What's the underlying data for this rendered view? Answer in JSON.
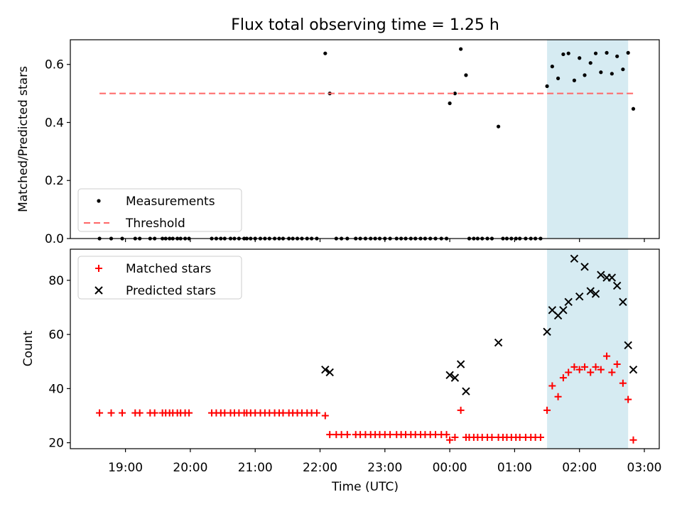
{
  "chart_data": {
    "type": "scatter",
    "title": "Flux total observing time = 1.25 h",
    "xlabel": "Time (UTC)",
    "x_ticks": [
      "19:00",
      "20:00",
      "21:00",
      "22:00",
      "23:00",
      "00:00",
      "01:00",
      "02:00",
      "03:00"
    ],
    "x_tick_hours": [
      19,
      20,
      21,
      22,
      23,
      24,
      25,
      26,
      27
    ],
    "xlim": [
      18.15,
      27.23
    ],
    "highlight_span": {
      "x0": 25.5,
      "x1": 26.75,
      "color": "#add8e6"
    },
    "panels": [
      {
        "ylabel": "Matched/Predicted stars",
        "ylim": [
          0,
          0.685
        ],
        "yticks": [
          "0.0",
          "0.2",
          "0.4",
          "0.6"
        ],
        "ytick_values": [
          0,
          0.2,
          0.4,
          0.6
        ],
        "legend": {
          "position": "lower-left",
          "entries": [
            "Measurements",
            "Threshold"
          ]
        },
        "series": [
          {
            "name": "Measurements",
            "marker": "dot",
            "color": "#000000",
            "points": [
              [
                18.6,
                0
              ],
              [
                18.78,
                0
              ],
              [
                18.95,
                0
              ],
              [
                19.15,
                0
              ],
              [
                19.22,
                0
              ],
              [
                19.38,
                0
              ],
              [
                19.45,
                0
              ],
              [
                19.57,
                0
              ],
              [
                19.62,
                0
              ],
              [
                19.68,
                0
              ],
              [
                19.73,
                0
              ],
              [
                19.8,
                0
              ],
              [
                19.85,
                0
              ],
              [
                19.92,
                0
              ],
              [
                19.98,
                0
              ],
              [
                20.33,
                0
              ],
              [
                20.4,
                0
              ],
              [
                20.47,
                0
              ],
              [
                20.53,
                0
              ],
              [
                20.62,
                0
              ],
              [
                20.68,
                0
              ],
              [
                20.75,
                0
              ],
              [
                20.83,
                0
              ],
              [
                20.87,
                0
              ],
              [
                20.93,
                0
              ],
              [
                21.0,
                0
              ],
              [
                21.08,
                0
              ],
              [
                21.15,
                0
              ],
              [
                21.22,
                0
              ],
              [
                21.3,
                0
              ],
              [
                21.37,
                0
              ],
              [
                21.43,
                0
              ],
              [
                21.52,
                0
              ],
              [
                21.58,
                0
              ],
              [
                21.65,
                0
              ],
              [
                21.72,
                0
              ],
              [
                21.8,
                0
              ],
              [
                21.87,
                0
              ],
              [
                21.95,
                0
              ],
              [
                22.08,
                0.638
              ],
              [
                22.15,
                0.5
              ],
              [
                22.25,
                0
              ],
              [
                22.33,
                0
              ],
              [
                22.42,
                0
              ],
              [
                22.55,
                0
              ],
              [
                22.62,
                0
              ],
              [
                22.7,
                0
              ],
              [
                22.78,
                0
              ],
              [
                22.85,
                0
              ],
              [
                22.92,
                0
              ],
              [
                23.0,
                0
              ],
              [
                23.08,
                0
              ],
              [
                23.18,
                0
              ],
              [
                23.25,
                0
              ],
              [
                23.32,
                0
              ],
              [
                23.4,
                0
              ],
              [
                23.47,
                0
              ],
              [
                23.55,
                0
              ],
              [
                23.62,
                0
              ],
              [
                23.7,
                0
              ],
              [
                23.78,
                0
              ],
              [
                23.87,
                0
              ],
              [
                23.95,
                0
              ],
              [
                24.0,
                0.466
              ],
              [
                24.08,
                0.5
              ],
              [
                24.17,
                0.653
              ],
              [
                24.25,
                0.563
              ],
              [
                24.3,
                0
              ],
              [
                24.37,
                0
              ],
              [
                24.43,
                0
              ],
              [
                24.5,
                0
              ],
              [
                24.58,
                0
              ],
              [
                24.65,
                0
              ],
              [
                24.75,
                0.386
              ],
              [
                24.82,
                0
              ],
              [
                24.88,
                0
              ],
              [
                24.95,
                0
              ],
              [
                25.02,
                0
              ],
              [
                25.08,
                0
              ],
              [
                25.17,
                0
              ],
              [
                25.25,
                0
              ],
              [
                25.32,
                0
              ],
              [
                25.4,
                0
              ],
              [
                25.5,
                0.525
              ],
              [
                25.58,
                0.593
              ],
              [
                25.67,
                0.552
              ],
              [
                25.75,
                0.635
              ],
              [
                25.83,
                0.638
              ],
              [
                25.92,
                0.545
              ],
              [
                26.0,
                0.622
              ],
              [
                26.08,
                0.563
              ],
              [
                26.17,
                0.605
              ],
              [
                26.25,
                0.638
              ],
              [
                26.33,
                0.573
              ],
              [
                26.42,
                0.64
              ],
              [
                26.5,
                0.568
              ],
              [
                26.58,
                0.628
              ],
              [
                26.67,
                0.583
              ],
              [
                26.75,
                0.64
              ],
              [
                26.83,
                0.447
              ]
            ]
          },
          {
            "name": "Threshold",
            "marker": "dashed-line",
            "color": "#ff6666",
            "x": [
              18.6,
              26.83
            ],
            "y": [
              0.5,
              0.5
            ]
          }
        ]
      },
      {
        "ylabel": "Count",
        "ylim": [
          17.8,
          91.5
        ],
        "yticks": [
          "20",
          "40",
          "60",
          "80"
        ],
        "ytick_values": [
          20,
          40,
          60,
          80
        ],
        "legend": {
          "position": "upper-left",
          "entries": [
            "Matched stars",
            "Predicted stars"
          ]
        },
        "series": [
          {
            "name": "Matched stars",
            "marker": "plus",
            "color": "#ff0000",
            "points": [
              [
                18.6,
                31
              ],
              [
                18.78,
                31
              ],
              [
                18.95,
                31
              ],
              [
                19.15,
                31
              ],
              [
                19.22,
                31
              ],
              [
                19.38,
                31
              ],
              [
                19.45,
                31
              ],
              [
                19.57,
                31
              ],
              [
                19.62,
                31
              ],
              [
                19.68,
                31
              ],
              [
                19.73,
                31
              ],
              [
                19.8,
                31
              ],
              [
                19.85,
                31
              ],
              [
                19.92,
                31
              ],
              [
                19.98,
                31
              ],
              [
                20.33,
                31
              ],
              [
                20.4,
                31
              ],
              [
                20.47,
                31
              ],
              [
                20.53,
                31
              ],
              [
                20.62,
                31
              ],
              [
                20.68,
                31
              ],
              [
                20.75,
                31
              ],
              [
                20.83,
                31
              ],
              [
                20.87,
                31
              ],
              [
                20.93,
                31
              ],
              [
                21.0,
                31
              ],
              [
                21.08,
                31
              ],
              [
                21.15,
                31
              ],
              [
                21.22,
                31
              ],
              [
                21.3,
                31
              ],
              [
                21.37,
                31
              ],
              [
                21.43,
                31
              ],
              [
                21.52,
                31
              ],
              [
                21.58,
                31
              ],
              [
                21.65,
                31
              ],
              [
                21.72,
                31
              ],
              [
                21.8,
                31
              ],
              [
                21.87,
                31
              ],
              [
                21.95,
                31
              ],
              [
                22.08,
                30
              ],
              [
                22.15,
                23
              ],
              [
                22.25,
                23
              ],
              [
                22.33,
                23
              ],
              [
                22.42,
                23
              ],
              [
                22.55,
                23
              ],
              [
                22.62,
                23
              ],
              [
                22.7,
                23
              ],
              [
                22.78,
                23
              ],
              [
                22.85,
                23
              ],
              [
                22.92,
                23
              ],
              [
                23.0,
                23
              ],
              [
                23.08,
                23
              ],
              [
                23.18,
                23
              ],
              [
                23.25,
                23
              ],
              [
                23.32,
                23
              ],
              [
                23.4,
                23
              ],
              [
                23.47,
                23
              ],
              [
                23.55,
                23
              ],
              [
                23.62,
                23
              ],
              [
                23.7,
                23
              ],
              [
                23.78,
                23
              ],
              [
                23.87,
                23
              ],
              [
                23.95,
                23
              ],
              [
                24.0,
                21
              ],
              [
                24.08,
                22
              ],
              [
                24.17,
                32
              ],
              [
                24.25,
                22
              ],
              [
                24.3,
                22
              ],
              [
                24.37,
                22
              ],
              [
                24.43,
                22
              ],
              [
                24.5,
                22
              ],
              [
                24.58,
                22
              ],
              [
                24.65,
                22
              ],
              [
                24.75,
                22
              ],
              [
                24.82,
                22
              ],
              [
                24.88,
                22
              ],
              [
                24.95,
                22
              ],
              [
                25.02,
                22
              ],
              [
                25.08,
                22
              ],
              [
                25.17,
                22
              ],
              [
                25.25,
                22
              ],
              [
                25.32,
                22
              ],
              [
                25.4,
                22
              ],
              [
                25.5,
                32
              ],
              [
                25.58,
                41
              ],
              [
                25.67,
                37
              ],
              [
                25.75,
                44
              ],
              [
                25.83,
                46
              ],
              [
                25.92,
                48
              ],
              [
                26.0,
                47
              ],
              [
                26.08,
                48
              ],
              [
                26.17,
                46
              ],
              [
                26.25,
                48
              ],
              [
                26.33,
                47
              ],
              [
                26.42,
                52
              ],
              [
                26.5,
                46
              ],
              [
                26.58,
                49
              ],
              [
                26.67,
                42
              ],
              [
                26.75,
                36
              ],
              [
                26.83,
                21
              ]
            ]
          },
          {
            "name": "Predicted stars",
            "marker": "x",
            "color": "#000000",
            "points": [
              [
                22.08,
                47
              ],
              [
                22.15,
                46
              ],
              [
                24.0,
                45
              ],
              [
                24.08,
                44
              ],
              [
                24.17,
                49
              ],
              [
                24.25,
                39
              ],
              [
                24.75,
                57
              ],
              [
                25.5,
                61
              ],
              [
                25.58,
                69
              ],
              [
                25.67,
                67
              ],
              [
                25.75,
                69
              ],
              [
                25.83,
                72
              ],
              [
                25.92,
                88
              ],
              [
                26.0,
                74
              ],
              [
                26.08,
                85
              ],
              [
                26.17,
                76
              ],
              [
                26.25,
                75
              ],
              [
                26.33,
                82
              ],
              [
                26.42,
                81
              ],
              [
                26.5,
                81
              ],
              [
                26.58,
                78
              ],
              [
                26.67,
                72
              ],
              [
                26.75,
                56
              ],
              [
                26.83,
                47
              ]
            ]
          }
        ]
      }
    ]
  }
}
